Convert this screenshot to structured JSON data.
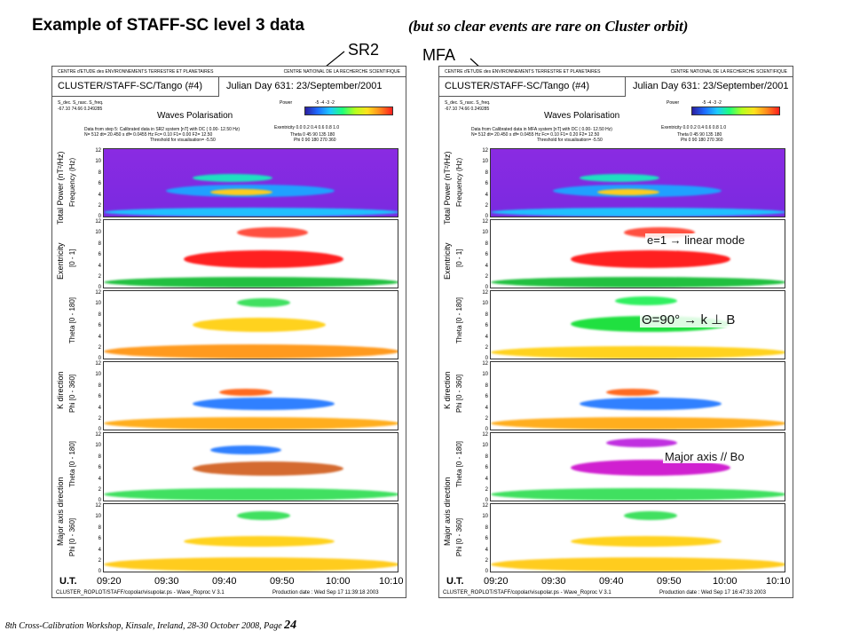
{
  "slide": {
    "title": "Example of STAFF-SC level 3 data",
    "subtitle": "(but so clear events are rare on Cluster orbit)",
    "callout_left": "SR2",
    "callout_right": "MFA",
    "footnote_text": "8th Cross-Calibration Workshop, Kinsale, Ireland, 28-30 October 2008, Page ",
    "footnote_page": "24"
  },
  "panel_common": {
    "org_left": "CENTRE d'ETUDE des ENVIRONNEMENTS TERRESTRE ET PLANETAIRES",
    "org_right": "CENTRE NATIONAL DE LA RECHERCHE SCIENTIFIQUE",
    "cluster_title": "CLUSTER/STAFF-SC/Tango (#4)",
    "julian": "Julian Day  631: 23/September/2001",
    "waves_title": "Waves Polarisation",
    "s_header": "S_dec.   S_rasc.    S_freq.",
    "s_values": "-67.10   74.66     0.249285",
    "power_label": "Power",
    "power_ticks": "-5    -4    -3    -2",
    "exentricity_row": "Exentricity  0.0  0.2  0.4  0.6  0.8  1.0",
    "theta_row": "Theta   0   45   90  135  180",
    "phi_row": "Phi    0   90  180  270  360",
    "x_ticks": [
      "09:20",
      "09:30",
      "09:40",
      "09:50",
      "10:00",
      "10:10"
    ],
    "ut_label": "U.T.",
    "footer_left": "CLUSTER_ROPLOT/STAFF/copolar/visupolar.ps - Wave_Roproc V 3.1",
    "y_ticks": [
      "12",
      "10",
      "8",
      "6",
      "4",
      "2",
      "0"
    ],
    "group_labels": {
      "total_power": "Total Power (nT²/Hz)",
      "exentricity": "Exentricity",
      "k_direction": "K direction",
      "major_axis": "Major axis direction"
    },
    "sub_labels": {
      "frequency": "Frequency (Hz)",
      "range01": "[0 - 1]",
      "theta": "Theta [0 - 180]",
      "phi": "Phi [0 - 360]"
    }
  },
  "panel_sr2": {
    "data_line1": "Data from step 5: Calibrated data in SR2 system [nT] with DC  ( 0.00-  12.50 Hz)",
    "data_line2": "N=  512   dt= 20.450 s   df= 0.0455 Hz  Fc=   0.10  F1=   0.00  F2=   12.50",
    "data_line3": "Threshold for visualisation= -5.50",
    "production": "Production date : Wed Sep 17 11:39:18 2003"
  },
  "panel_mfa": {
    "data_line1": "Data from Calibrated data in MFA system [nT] with DC  ( 0.00-  12.50 Hz)",
    "data_line2": "N=  512   dt= 20.450 s   df= 0.0455 Hz  Fc=   0.10  F1=   0.20  F2=   12.50",
    "data_line3": "Threshold for visualisation= -5.50",
    "production": "Production date : Wed Sep 17 16:47:33 2003",
    "annot_e": "e=1 → linear mode",
    "annot_theta": "Θ=90° → k ⊥ B",
    "annot_major": "Major axis // Bo"
  },
  "colors": {
    "power_bg": "#8a2be2",
    "red": "#ff2020",
    "green": "#20e040",
    "magenta": "#d020d0",
    "blue": "#2060ff",
    "orange": "#ff8a1e"
  }
}
